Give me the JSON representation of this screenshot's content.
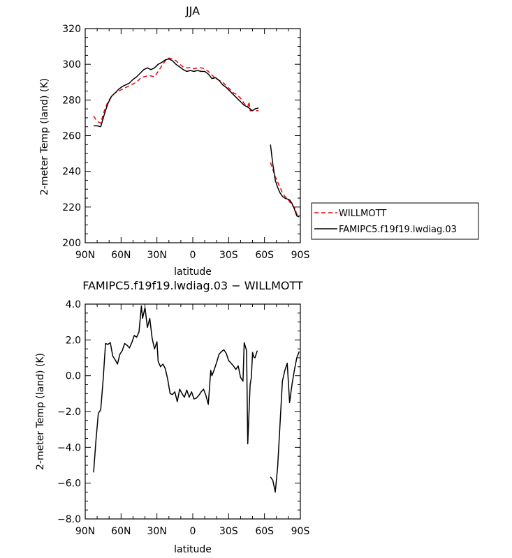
{
  "chart_data": [
    {
      "type": "line",
      "title": "JJA",
      "xlabel": "latitude",
      "ylabel": "2-meter Temp (land) (K)",
      "xlim": [
        90,
        -90
      ],
      "ylim": [
        200,
        320
      ],
      "x_ticks": [
        "90N",
        "60N",
        "30N",
        "0",
        "30S",
        "60S",
        "90S"
      ],
      "y_ticks": [
        "200",
        "220",
        "240",
        "260",
        "280",
        "300",
        "320"
      ],
      "legend_position": "right",
      "series": [
        {
          "name": "WILLMOTT",
          "color": "#e8000b",
          "dash": "dashed",
          "segments": [
            [
              [
                83,
                271
              ],
              [
                80,
                268
              ],
              [
                77,
                267
              ],
              [
                74,
                274
              ],
              [
                71,
                279
              ],
              [
                68,
                282
              ],
              [
                65,
                284
              ],
              [
                62,
                285
              ],
              [
                59,
                286
              ],
              [
                56,
                287
              ],
              [
                53,
                288
              ],
              [
                50,
                289
              ],
              [
                47,
                290
              ],
              [
                44,
                292
              ],
              [
                41,
                293
              ],
              [
                38,
                293.5
              ],
              [
                35,
                293.5
              ],
              [
                32,
                293
              ],
              [
                29,
                296
              ],
              [
                26,
                299
              ],
              [
                23,
                302
              ],
              [
                20,
                303.5
              ],
              [
                17,
                303
              ],
              [
                14,
                302
              ],
              [
                11,
                300
              ],
              [
                8,
                298.5
              ],
              [
                5,
                298
              ],
              [
                2,
                298
              ],
              [
                -1,
                297.5
              ],
              [
                -4,
                298
              ],
              [
                -7,
                298
              ],
              [
                -10,
                297.5
              ],
              [
                -13,
                296
              ],
              [
                -16,
                294
              ],
              [
                -19,
                292
              ],
              [
                -22,
                291
              ],
              [
                -25,
                290
              ],
              [
                -28,
                288
              ],
              [
                -31,
                286
              ],
              [
                -34,
                284
              ],
              [
                -37,
                283
              ],
              [
                -40,
                281
              ],
              [
                -43,
                278
              ],
              [
                -46,
                276
              ],
              [
                -47,
                279
              ],
              [
                -48,
                274
              ],
              [
                -50,
                274
              ],
              [
                -53,
                274
              ],
              [
                -55,
                274
              ]
            ],
            [
              [
                -65,
                245
              ],
              [
                -67,
                241
              ],
              [
                -69,
                237
              ],
              [
                -71,
                234
              ],
              [
                -73,
                231
              ],
              [
                -75,
                228
              ],
              [
                -77,
                226
              ],
              [
                -79,
                225
              ],
              [
                -81,
                223
              ],
              [
                -83,
                221
              ],
              [
                -85,
                220
              ],
              [
                -87,
                216
              ],
              [
                -89,
                215
              ]
            ]
          ]
        },
        {
          "name": "FAMIPC5.f19f19.lwdiag.03",
          "color": "#000000",
          "dash": "solid",
          "segments": [
            [
              [
                83,
                265.5
              ],
              [
                80,
                265.5
              ],
              [
                77,
                265
              ],
              [
                74,
                272
              ],
              [
                71,
                278
              ],
              [
                68,
                282
              ],
              [
                65,
                284
              ],
              [
                62,
                286
              ],
              [
                59,
                287.5
              ],
              [
                56,
                288.5
              ],
              [
                53,
                289.5
              ],
              [
                50,
                291.5
              ],
              [
                47,
                293
              ],
              [
                44,
                295
              ],
              [
                41,
                297
              ],
              [
                38,
                298
              ],
              [
                35,
                297
              ],
              [
                32,
                298
              ],
              [
                29,
                300
              ],
              [
                26,
                301
              ],
              [
                23,
                302.5
              ],
              [
                20,
                303
              ],
              [
                17,
                302
              ],
              [
                14,
                300
              ],
              [
                11,
                298.5
              ],
              [
                8,
                297
              ],
              [
                5,
                296
              ],
              [
                2,
                296.5
              ],
              [
                -1,
                296
              ],
              [
                -4,
                296.5
              ],
              [
                -7,
                296
              ],
              [
                -10,
                296
              ],
              [
                -13,
                294.5
              ],
              [
                -16,
                292
              ],
              [
                -19,
                292.5
              ],
              [
                -22,
                291
              ],
              [
                -25,
                288.5
              ],
              [
                -28,
                287
              ],
              [
                -31,
                285
              ],
              [
                -34,
                283
              ],
              [
                -37,
                281
              ],
              [
                -40,
                279
              ],
              [
                -43,
                277
              ],
              [
                -46,
                276
              ],
              [
                -47,
                275.5
              ],
              [
                -48,
                275
              ],
              [
                -50,
                274
              ],
              [
                -52,
                275
              ],
              [
                -55,
                275.5
              ]
            ],
            [
              [
                -65,
                255
              ],
              [
                -67,
                244
              ],
              [
                -69,
                235
              ],
              [
                -71,
                231
              ],
              [
                -73,
                228
              ],
              [
                -75,
                226
              ],
              [
                -77,
                225
              ],
              [
                -79,
                224.5
              ],
              [
                -81,
                224
              ],
              [
                -83,
                222
              ],
              [
                -85,
                219
              ],
              [
                -87,
                215
              ],
              [
                -89,
                214.5
              ]
            ]
          ]
        }
      ]
    },
    {
      "type": "line",
      "title": "FAMIPC5.f19f19.lwdiag.03 − WILLMOTT",
      "xlabel": "latitude",
      "ylabel": "2-meter Temp (land) (K)",
      "xlim": [
        90,
        -90
      ],
      "ylim": [
        -8,
        4
      ],
      "x_ticks": [
        "90N",
        "60N",
        "30N",
        "0",
        "30S",
        "60S",
        "90S"
      ],
      "y_ticks": [
        "−8.0",
        "−6.0",
        "−4.0",
        "−2.0",
        "0.0",
        "2.0",
        "4.0"
      ],
      "series": [
        {
          "color": "#000000",
          "dash": "solid",
          "segments": [
            [
              [
                83,
                -5.4
              ],
              [
                81,
                -3.6
              ],
              [
                79,
                -2.1
              ],
              [
                77,
                -1.9
              ],
              [
                75,
                -0.2
              ],
              [
                73,
                1.8
              ],
              [
                71,
                1.75
              ],
              [
                69,
                1.85
              ],
              [
                67,
                1.1
              ],
              [
                65,
                0.9
              ],
              [
                63,
                0.65
              ],
              [
                61,
                1.2
              ],
              [
                59,
                1.4
              ],
              [
                57,
                1.8
              ],
              [
                55,
                1.7
              ],
              [
                53,
                1.55
              ],
              [
                51,
                1.85
              ],
              [
                49,
                2.25
              ],
              [
                47,
                2.15
              ],
              [
                45,
                2.45
              ],
              [
                43,
                3.9
              ],
              [
                42,
                3.2
              ],
              [
                40,
                3.8
              ],
              [
                38,
                2.7
              ],
              [
                36,
                3.2
              ],
              [
                34,
                2.1
              ],
              [
                32,
                1.5
              ],
              [
                30,
                1.9
              ],
              [
                29,
                0.8
              ],
              [
                27,
                0.5
              ],
              [
                25,
                0.65
              ],
              [
                23,
                0.4
              ],
              [
                21,
                -0.2
              ],
              [
                19,
                -1.0
              ],
              [
                17,
                -1.05
              ],
              [
                15,
                -0.9
              ],
              [
                13,
                -1.45
              ],
              [
                11,
                -0.75
              ],
              [
                9,
                -1.0
              ],
              [
                7,
                -1.2
              ],
              [
                5,
                -0.8
              ],
              [
                3,
                -1.2
              ],
              [
                1,
                -0.9
              ],
              [
                -1,
                -1.3
              ],
              [
                -3,
                -1.25
              ],
              [
                -5,
                -1.1
              ],
              [
                -7,
                -0.9
              ],
              [
                -9,
                -0.75
              ],
              [
                -11,
                -1.1
              ],
              [
                -13,
                -1.6
              ],
              [
                -15,
                0.3
              ],
              [
                -16,
                0.0
              ],
              [
                -18,
                0.35
              ],
              [
                -20,
                0.75
              ],
              [
                -22,
                1.2
              ],
              [
                -24,
                1.35
              ],
              [
                -26,
                1.45
              ],
              [
                -28,
                1.25
              ],
              [
                -30,
                0.85
              ],
              [
                -32,
                0.7
              ],
              [
                -34,
                0.55
              ],
              [
                -36,
                0.35
              ],
              [
                -38,
                0.55
              ],
              [
                -40,
                -0.1
              ],
              [
                -42,
                -0.3
              ],
              [
                -43,
                1.85
              ],
              [
                -45,
                1.4
              ],
              [
                -46,
                -3.8
              ],
              [
                -48,
                -0.5
              ],
              [
                -49,
                -0.1
              ],
              [
                -50,
                1.3
              ],
              [
                -51,
                1.05
              ],
              [
                -52,
                1.0
              ],
              [
                -54,
                1.4
              ]
            ],
            [
              [
                -65,
                -5.65
              ],
              [
                -67,
                -5.85
              ],
              [
                -69,
                -6.5
              ],
              [
                -71,
                -5.1
              ],
              [
                -73,
                -2.7
              ],
              [
                -75,
                -0.3
              ],
              [
                -77,
                0.3
              ],
              [
                -79,
                0.7
              ],
              [
                -81,
                -1.5
              ],
              [
                -83,
                -0.5
              ],
              [
                -85,
                0.3
              ],
              [
                -87,
                1.0
              ],
              [
                -89,
                1.35
              ]
            ]
          ]
        }
      ]
    }
  ]
}
